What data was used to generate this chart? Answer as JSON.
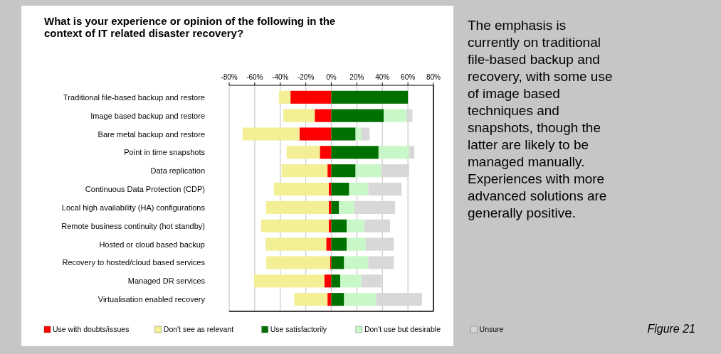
{
  "chart_data": {
    "type": "bar",
    "orientation": "horizontal",
    "stacked": true,
    "title": "What is your experience or opinion of the following in the context of IT related disaster recovery?",
    "categories": [
      "Traditional file-based backup and restore",
      "Image based backup and restore",
      "Bare metal backup and restore",
      "Point in time snapshots",
      "Data replication",
      "Continuous Data Protection (CDP)",
      "Local high availability (HA) configurations",
      "Remote business continuity (hot standby)",
      "Hosted or cloud based backup",
      "Recovery to hosted/cloud based services",
      "Managed DR services",
      "Virtualisation enabled recovery"
    ],
    "series": [
      {
        "name": "Use with doubts/issues",
        "color": "#ff0000",
        "values": [
          -32,
          -13,
          -25,
          -9,
          -3,
          -2,
          -2,
          -2,
          -4,
          -1,
          -5.5,
          -3
        ]
      },
      {
        "name": "Don't see as relevant",
        "color": "#f2ef94",
        "values": [
          -9,
          -24.5,
          -44.5,
          -26,
          -36,
          -43,
          -49,
          -53,
          -47.5,
          -50,
          -55,
          -26
        ]
      },
      {
        "name": "Use satisfactorily",
        "color": "#007000",
        "values": [
          60,
          41,
          19,
          37,
          19,
          14,
          6,
          12,
          12,
          10,
          7,
          10
        ]
      },
      {
        "name": "Don't use but desirable",
        "color": "#c8f7c8",
        "values": [
          0,
          18,
          4.5,
          24,
          20,
          15,
          12,
          14,
          15,
          19,
          16.5,
          25
        ]
      },
      {
        "name": "Unsure",
        "color": "#d8d8d8",
        "values": [
          0,
          4.5,
          6.5,
          4,
          22,
          26,
          32,
          20,
          22,
          20,
          16,
          36
        ]
      }
    ],
    "xlim": [
      -80,
      80
    ],
    "xticks": [
      {
        "value": -80,
        "label": "-80%"
      },
      {
        "value": -60,
        "label": "-60%"
      },
      {
        "value": -40,
        "label": "-40%"
      },
      {
        "value": -20,
        "label": "-20%"
      },
      {
        "value": 0,
        "label": "0%"
      },
      {
        "value": 20,
        "label": "20%"
      },
      {
        "value": 40,
        "label": "40%"
      },
      {
        "value": 60,
        "label": "60%"
      },
      {
        "value": 80,
        "label": "80%"
      }
    ],
    "grid": "x",
    "legend": "bottom",
    "annotations": [
      "The emphasis is currently on traditional file-based backup and recovery, with some use of image based techniques and snapshots, though the latter are likely to be managed manually. Experiences with more advanced solutions are generally positive.",
      "Figure 21"
    ]
  }
}
